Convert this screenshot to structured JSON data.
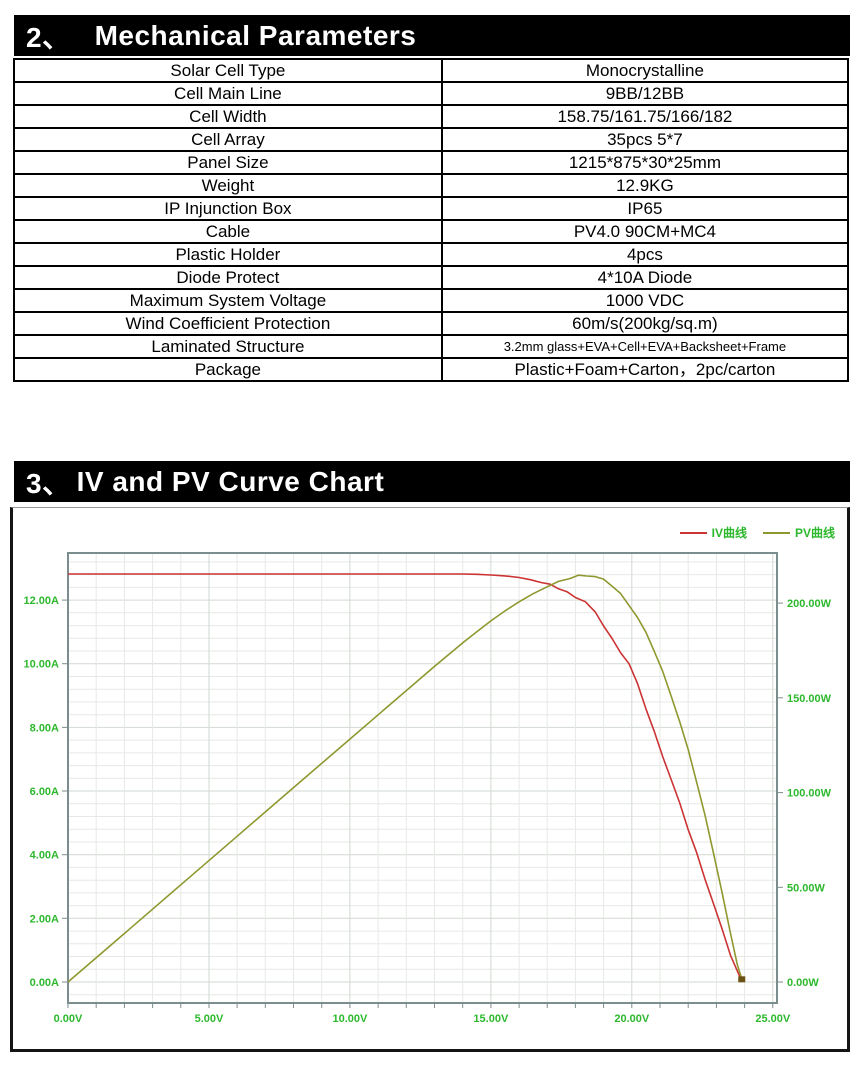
{
  "section2": {
    "number": "2、",
    "title": "Mechanical Parameters"
  },
  "parameters": {
    "rows": [
      {
        "label": "Solar Cell Type",
        "value": "Monocrystalline"
      },
      {
        "label": "Cell Main Line",
        "value": "9BB/12BB"
      },
      {
        "label": "Cell Width",
        "value": "158.75/161.75/166/182"
      },
      {
        "label": "Cell Array",
        "value": "35pcs 5*7"
      },
      {
        "label": "Panel Size",
        "value": "1215*875*30*25mm"
      },
      {
        "label": "Weight",
        "value": "12.9KG"
      },
      {
        "label": "IP Injunction Box",
        "value": "IP65"
      },
      {
        "label": "Cable",
        "value": "PV4.0 90CM+MC4"
      },
      {
        "label": "Plastic Holder",
        "value": "4pcs"
      },
      {
        "label": "Diode Protect",
        "value": "4*10A Diode"
      },
      {
        "label": "Maximum System Voltage",
        "value": "1000 VDC"
      },
      {
        "label": "Wind Coefficient Protection",
        "value": "60m/s(200kg/sq.m)"
      },
      {
        "label": "Laminated Structure",
        "value": "3.2mm glass+EVA+Cell+EVA+Backsheet+Frame"
      },
      {
        "label": "Package",
        "value": "Plastic+Foam+Carton，2pc/carton"
      }
    ]
  },
  "section3": {
    "number": "3、",
    "title": "IV and PV Curve Chart"
  },
  "chart_data": {
    "type": "line",
    "title": "IV and PV Curve Chart",
    "legend_position": "top-right",
    "colors": {
      "axis_text": "#2eb82e",
      "grid_minor": "#e6e9e6",
      "grid_major": "#d2d9d2",
      "plot_border": "#7b8d8d",
      "end_marker": "#6b5214"
    },
    "x_axis": {
      "unit": "V",
      "min": 0,
      "max": 25.15,
      "minor_grid_step": 1,
      "major_grid_step": 5,
      "tick_values": [
        0,
        5,
        10,
        15,
        20,
        25
      ],
      "tick_labels": [
        "0.00V",
        "5.00V",
        "10.00V",
        "15.00V",
        "20.00V",
        "25.00V"
      ]
    },
    "left_axis": {
      "unit": "A",
      "min": -0.66,
      "max": 13.48,
      "minor_grid_step": 0.4,
      "major_grid_step": 2,
      "tick_values": [
        12,
        10,
        8,
        6,
        4,
        2,
        0
      ],
      "tick_labels": [
        "12.00A",
        "10.00A",
        "8.00A",
        "6.00A",
        "4.00A",
        "2.00A",
        "0.00A"
      ]
    },
    "right_axis": {
      "unit": "W",
      "min": -11.1,
      "max": 226.5,
      "per_left_unit": 16.8,
      "tick_values": [
        200,
        150,
        100,
        50,
        0
      ],
      "tick_labels": [
        "200.00W",
        "150.00W",
        "100.00W",
        "50.00W",
        "0.00W"
      ]
    },
    "series": [
      {
        "name": "IV曲线",
        "color": "#cc3333",
        "axis": "left",
        "points": [
          [
            0,
            12.82
          ],
          [
            2,
            12.82
          ],
          [
            4,
            12.82
          ],
          [
            6,
            12.82
          ],
          [
            8,
            12.82
          ],
          [
            10,
            12.82
          ],
          [
            12,
            12.82
          ],
          [
            13,
            12.82
          ],
          [
            14,
            12.82
          ],
          [
            14.5,
            12.81
          ],
          [
            15,
            12.79
          ],
          [
            15.5,
            12.76
          ],
          [
            16,
            12.71
          ],
          [
            16.4,
            12.64
          ],
          [
            16.8,
            12.55
          ],
          [
            17.1,
            12.47
          ],
          [
            17.4,
            12.37
          ],
          [
            17.7,
            12.25
          ],
          [
            18,
            12.11
          ],
          [
            18.35,
            11.95
          ],
          [
            18.7,
            11.6
          ],
          [
            19,
            11.2
          ],
          [
            19.3,
            10.78
          ],
          [
            19.6,
            10.38
          ],
          [
            19.9,
            10.0
          ],
          [
            20.2,
            9.35
          ],
          [
            20.5,
            8.6
          ],
          [
            20.8,
            7.85
          ],
          [
            21.1,
            7.1
          ],
          [
            21.4,
            6.35
          ],
          [
            21.7,
            5.6
          ],
          [
            22,
            4.8
          ],
          [
            22.3,
            4.05
          ],
          [
            22.6,
            3.25
          ],
          [
            22.9,
            2.45
          ],
          [
            23.2,
            1.65
          ],
          [
            23.5,
            0.85
          ],
          [
            23.7,
            0.42
          ],
          [
            23.85,
            0.15
          ],
          [
            23.92,
            0.05
          ]
        ]
      },
      {
        "name": "PV曲线",
        "color": "#8f982f",
        "axis": "right",
        "points": [
          [
            0,
            0
          ],
          [
            2,
            25.6
          ],
          [
            4,
            51.3
          ],
          [
            6,
            76.9
          ],
          [
            8,
            102.6
          ],
          [
            10,
            128.2
          ],
          [
            12,
            153.8
          ],
          [
            13,
            166.6
          ],
          [
            14,
            179.0
          ],
          [
            14.5,
            184.9
          ],
          [
            15,
            190.6
          ],
          [
            15.5,
            195.9
          ],
          [
            16,
            200.7
          ],
          [
            16.5,
            205.0
          ],
          [
            17,
            208.6
          ],
          [
            17.4,
            211.0
          ],
          [
            17.8,
            213.2
          ],
          [
            18.1,
            214.5
          ],
          [
            18.4,
            214.8
          ],
          [
            18.7,
            214.0
          ],
          [
            19,
            212.2
          ],
          [
            19.3,
            209.2
          ],
          [
            19.6,
            204.9
          ],
          [
            19.9,
            199.3
          ],
          [
            20.2,
            192.4
          ],
          [
            20.5,
            184.2
          ],
          [
            20.8,
            174.6
          ],
          [
            21.1,
            163.6
          ],
          [
            21.4,
            151.2
          ],
          [
            21.7,
            137.4
          ],
          [
            22,
            122.2
          ],
          [
            22.3,
            105.6
          ],
          [
            22.6,
            87.6
          ],
          [
            22.9,
            68.2
          ],
          [
            23.2,
            47.4
          ],
          [
            23.5,
            25.2
          ],
          [
            23.75,
            9.0
          ],
          [
            23.9,
            1.5
          ]
        ]
      }
    ],
    "end_marker": {
      "x": 23.9,
      "y_left": 0.1
    }
  }
}
